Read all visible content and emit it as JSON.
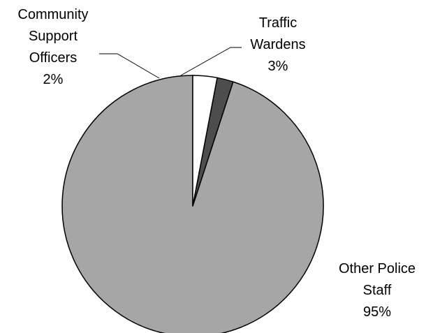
{
  "chart_data": {
    "type": "pie",
    "title": "",
    "slices": [
      {
        "label_lines": [
          "Other Police",
          "Staff"
        ],
        "value": 95,
        "value_label": "95%",
        "color": "#a6a6a6"
      },
      {
        "label_lines": [
          "Community",
          "Support",
          "Officers"
        ],
        "value": 2,
        "value_label": "2%",
        "color": "#4d4d4d"
      },
      {
        "label_lines": [
          "Traffic",
          "Wardens"
        ],
        "value": 3,
        "value_label": "3%",
        "color": "#ffffff"
      }
    ],
    "start_angle_deg": 0,
    "direction": "counterclockwise",
    "outline_color": "#000000"
  }
}
